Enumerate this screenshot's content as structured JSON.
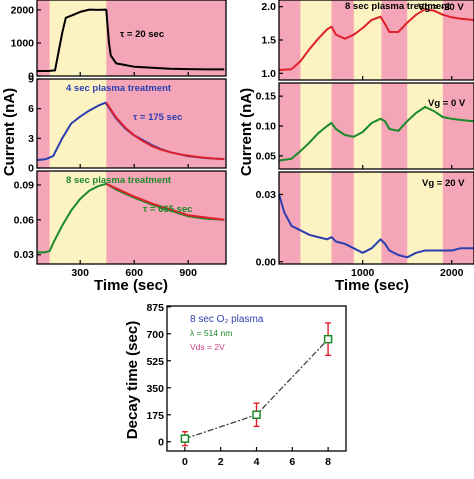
{
  "colors": {
    "pink": "#f4a6b8",
    "yellow": "#fdf2c2",
    "black": "#000000",
    "blue": "#2b3fb0",
    "red": "#e0202a",
    "green": "#1a8a2a",
    "magenta": "#cc4488"
  },
  "chart_data": [
    {
      "id": "left-stacked",
      "type": "line",
      "xlabel": "Time (sec)",
      "ylabel": "Current (nA)",
      "xlim": [
        60,
        1110
      ],
      "xticks": [
        "300",
        "600",
        "900"
      ],
      "xtick_values": [
        300,
        600,
        900
      ],
      "panels": [
        {
          "id": "top",
          "ylim": [
            0,
            2300
          ],
          "yticks": [
            "0",
            "1000",
            "2000"
          ],
          "ytick_values": [
            0,
            1000,
            2000
          ],
          "yellow_band": [
            130,
            445
          ],
          "annotation": "τ = 20 sec",
          "annotation_color": "black",
          "series": [
            {
              "color": "black",
              "x": [
                60,
                120,
                160,
                200,
                220,
                260,
                300,
                350,
                400,
                440,
                445,
                452,
                460,
                470,
                500,
                600,
                700,
                800,
                900,
                1000,
                1100
              ],
              "y": [
                150,
                150,
                170,
                1300,
                1760,
                1850,
                1940,
                2010,
                2000,
                2010,
                2000,
                1500,
                1000,
                620,
                380,
                280,
                250,
                220,
                210,
                200,
                200
              ]
            }
          ]
        },
        {
          "id": "middle",
          "ylim": [
            0,
            9
          ],
          "yticks": [
            "0",
            "3",
            "6",
            "9"
          ],
          "ytick_values": [
            0,
            3,
            6,
            9
          ],
          "yellow_band": [
            130,
            445
          ],
          "annotation_title": "4 sec plasma treatment",
          "annotation_title_color": "blue",
          "annotation": "τ = 175 sec",
          "annotation_color": "blue",
          "series": [
            {
              "color": "blue",
              "x": [
                60,
                110,
                150,
                200,
                250,
                300,
                350,
                400,
                440,
                460,
                500,
                550,
                600,
                650,
                700,
                750,
                800,
                850,
                900,
                950,
                1000,
                1050,
                1100
              ],
              "y": [
                0.8,
                0.9,
                1.2,
                3.0,
                4.5,
                5.2,
                5.8,
                6.3,
                6.6,
                6.1,
                5.0,
                4.0,
                3.3,
                2.8,
                2.3,
                1.9,
                1.6,
                1.4,
                1.2,
                1.1,
                1.0,
                0.95,
                0.9
              ]
            },
            {
              "color": "red",
              "x": [
                445,
                500,
                550,
                600,
                650,
                700,
                750,
                800,
                850,
                900,
                950,
                1000,
                1050,
                1100
              ],
              "y": [
                6.6,
                5.1,
                4.1,
                3.3,
                2.7,
                2.2,
                1.85,
                1.6,
                1.4,
                1.25,
                1.12,
                1.02,
                0.95,
                0.9
              ]
            }
          ]
        },
        {
          "id": "bottom",
          "ylim": [
            0.022,
            0.102
          ],
          "yticks": [
            "0.03",
            "0.06",
            "0.09"
          ],
          "ytick_values": [
            0.03,
            0.06,
            0.09
          ],
          "yellow_band": [
            130,
            445
          ],
          "annotation_title": "8 sec plasma treatment",
          "annotation_title_color": "green",
          "annotation": "τ = 665 sec",
          "annotation_color": "green",
          "series": [
            {
              "color": "green",
              "x": [
                60,
                100,
                130,
                150,
                200,
                250,
                300,
                350,
                400,
                445,
                500,
                600,
                700,
                800,
                900,
                1000,
                1100
              ],
              "y": [
                0.032,
                0.032,
                0.033,
                0.04,
                0.055,
                0.068,
                0.078,
                0.085,
                0.089,
                0.091,
                0.086,
                0.079,
                0.073,
                0.068,
                0.063,
                0.061,
                0.06
              ]
            },
            {
              "color": "red",
              "x": [
                445,
                500,
                600,
                700,
                800,
                900,
                1000,
                1100
              ],
              "y": [
                0.091,
                0.087,
                0.08,
                0.074,
                0.069,
                0.064,
                0.062,
                0.06
              ]
            }
          ]
        }
      ]
    },
    {
      "id": "right-stacked",
      "type": "line",
      "xlabel": "Time (sec)",
      "ylabel": "Current (nA)",
      "xlim": [
        60,
        2250
      ],
      "xticks": [
        "1000",
        "2000"
      ],
      "xtick_values": [
        1000,
        2000
      ],
      "yellow_bands": [
        [
          300,
          650
        ],
        [
          900,
          1210
        ],
        [
          1500,
          1900
        ]
      ],
      "panels": [
        {
          "id": "top",
          "ylim": [
            0.9,
            2.1
          ],
          "yticks": [
            "1.0",
            "1.5",
            "2.0"
          ],
          "ytick_values": [
            1.0,
            1.5,
            2.0
          ],
          "annotation_title": "8 sec plasma treatment",
          "annotation_title_color": "black",
          "annotation": "Vg = -20 V",
          "series": [
            {
              "color": "red",
              "x": [
                60,
                200,
                300,
                400,
                500,
                600,
                650,
                700,
                800,
                900,
                1000,
                1100,
                1200,
                1250,
                1300,
                1400,
                1500,
                1600,
                1700,
                1800,
                1900,
                2000,
                2100,
                2250
              ],
              "y": [
                1.05,
                1.06,
                1.18,
                1.36,
                1.52,
                1.66,
                1.7,
                1.58,
                1.52,
                1.58,
                1.68,
                1.8,
                1.85,
                1.74,
                1.62,
                1.62,
                1.76,
                1.88,
                1.96,
                1.94,
                1.88,
                1.84,
                1.82,
                1.8
              ]
            }
          ]
        },
        {
          "id": "middle",
          "ylim": [
            0.028,
            0.172
          ],
          "yticks": [
            "0.05",
            "0.10",
            "0.15"
          ],
          "ytick_values": [
            0.05,
            0.1,
            0.15
          ],
          "annotation": "Vg = 0 V",
          "series": [
            {
              "color": "green",
              "x": [
                60,
                200,
                300,
                400,
                500,
                600,
                650,
                700,
                800,
                900,
                1000,
                1100,
                1200,
                1250,
                1300,
                1400,
                1500,
                1600,
                1700,
                1800,
                1900,
                2000,
                2100,
                2250
              ],
              "y": [
                0.042,
                0.045,
                0.058,
                0.072,
                0.088,
                0.1,
                0.105,
                0.095,
                0.085,
                0.082,
                0.09,
                0.105,
                0.112,
                0.108,
                0.095,
                0.092,
                0.108,
                0.122,
                0.132,
                0.125,
                0.115,
                0.112,
                0.11,
                0.108
              ]
            }
          ]
        },
        {
          "id": "bottom",
          "ylim": [
            -0.001,
            0.04
          ],
          "yticks": [
            "0.00",
            "0.03"
          ],
          "ytick_values": [
            0.0,
            0.03
          ],
          "annotation": "Vg = 20 V",
          "series": [
            {
              "color": "blue",
              "x": [
                60,
                120,
                200,
                300,
                400,
                500,
                600,
                650,
                700,
                800,
                900,
                1000,
                1100,
                1200,
                1250,
                1300,
                1400,
                1500,
                1600,
                1700,
                1800,
                1900,
                2000,
                2100,
                2250
              ],
              "y": [
                0.03,
                0.022,
                0.016,
                0.014,
                0.012,
                0.011,
                0.01,
                0.011,
                0.009,
                0.008,
                0.006,
                0.004,
                0.006,
                0.01,
                0.008,
                0.005,
                0.003,
                0.002,
                0.004,
                0.005,
                0.005,
                0.005,
                0.005,
                0.006,
                0.006
              ]
            }
          ]
        }
      ]
    },
    {
      "id": "decay-time",
      "type": "scatter",
      "xlabel": "",
      "ylabel": "Decay time (sec)",
      "xlim": [
        -1,
        9
      ],
      "ylim": [
        -60,
        880
      ],
      "xticks": [
        "0",
        "2",
        "4",
        "6",
        "8"
      ],
      "xtick_values": [
        0,
        2,
        4,
        6,
        8
      ],
      "yticks": [
        "0",
        "175",
        "350",
        "525",
        "700",
        "875"
      ],
      "ytick_values": [
        0,
        175,
        350,
        525,
        700,
        875
      ],
      "legend_lines": [
        {
          "text": "8 sec O₂ plasma",
          "color": "blue"
        },
        {
          "text": "λ = 514 nm",
          "color": "green"
        },
        {
          "text": "Vds = 2V",
          "color": "magenta"
        }
      ],
      "points": [
        {
          "x": 0,
          "y": 20,
          "err": 45
        },
        {
          "x": 4,
          "y": 175,
          "err": 75
        },
        {
          "x": 8,
          "y": 665,
          "err": 105
        }
      ]
    }
  ]
}
